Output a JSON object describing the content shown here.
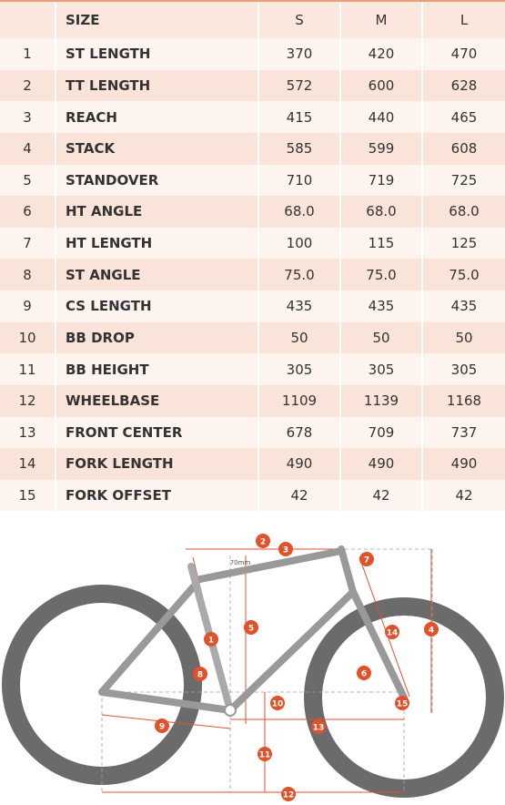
{
  "table": {
    "header": {
      "size": "SIZE",
      "sizes": [
        "S",
        "M",
        "L"
      ]
    },
    "rows": [
      {
        "num": "1",
        "name": "ST LENGTH",
        "values": [
          "370",
          "420",
          "470"
        ]
      },
      {
        "num": "2",
        "name": "TT LENGTH",
        "values": [
          "572",
          "600",
          "628"
        ]
      },
      {
        "num": "3",
        "name": "REACH",
        "values": [
          "415",
          "440",
          "465"
        ]
      },
      {
        "num": "4",
        "name": "STACK",
        "values": [
          "585",
          "599",
          "608"
        ]
      },
      {
        "num": "5",
        "name": "STANDOVER",
        "values": [
          "710",
          "719",
          "725"
        ]
      },
      {
        "num": "6",
        "name": "HT ANGLE",
        "values": [
          "68.0",
          "68.0",
          "68.0"
        ]
      },
      {
        "num": "7",
        "name": "HT LENGTH",
        "values": [
          "100",
          "115",
          "125"
        ]
      },
      {
        "num": "8",
        "name": "ST ANGLE",
        "values": [
          "75.0",
          "75.0",
          "75.0"
        ]
      },
      {
        "num": "9",
        "name": "CS LENGTH",
        "values": [
          "435",
          "435",
          "435"
        ]
      },
      {
        "num": "10",
        "name": "BB DROP",
        "values": [
          "50",
          "50",
          "50"
        ]
      },
      {
        "num": "11",
        "name": "BB HEIGHT",
        "values": [
          "305",
          "305",
          "305"
        ]
      },
      {
        "num": "12",
        "name": "WHEELBASE",
        "values": [
          "1109",
          "1139",
          "1168"
        ]
      },
      {
        "num": "13",
        "name": "FRONT CENTER",
        "values": [
          "678",
          "709",
          "737"
        ]
      },
      {
        "num": "14",
        "name": "FORK LENGTH",
        "values": [
          "490",
          "490",
          "490"
        ]
      },
      {
        "num": "15",
        "name": "FORK OFFSET",
        "values": [
          "42",
          "42",
          "42"
        ]
      }
    ]
  },
  "diagram": {
    "markers": [
      "1",
      "2",
      "3",
      "4",
      "5",
      "6",
      "7",
      "8",
      "9",
      "10",
      "11",
      "12",
      "13",
      "14",
      "15"
    ],
    "offset_label": "70mm"
  }
}
